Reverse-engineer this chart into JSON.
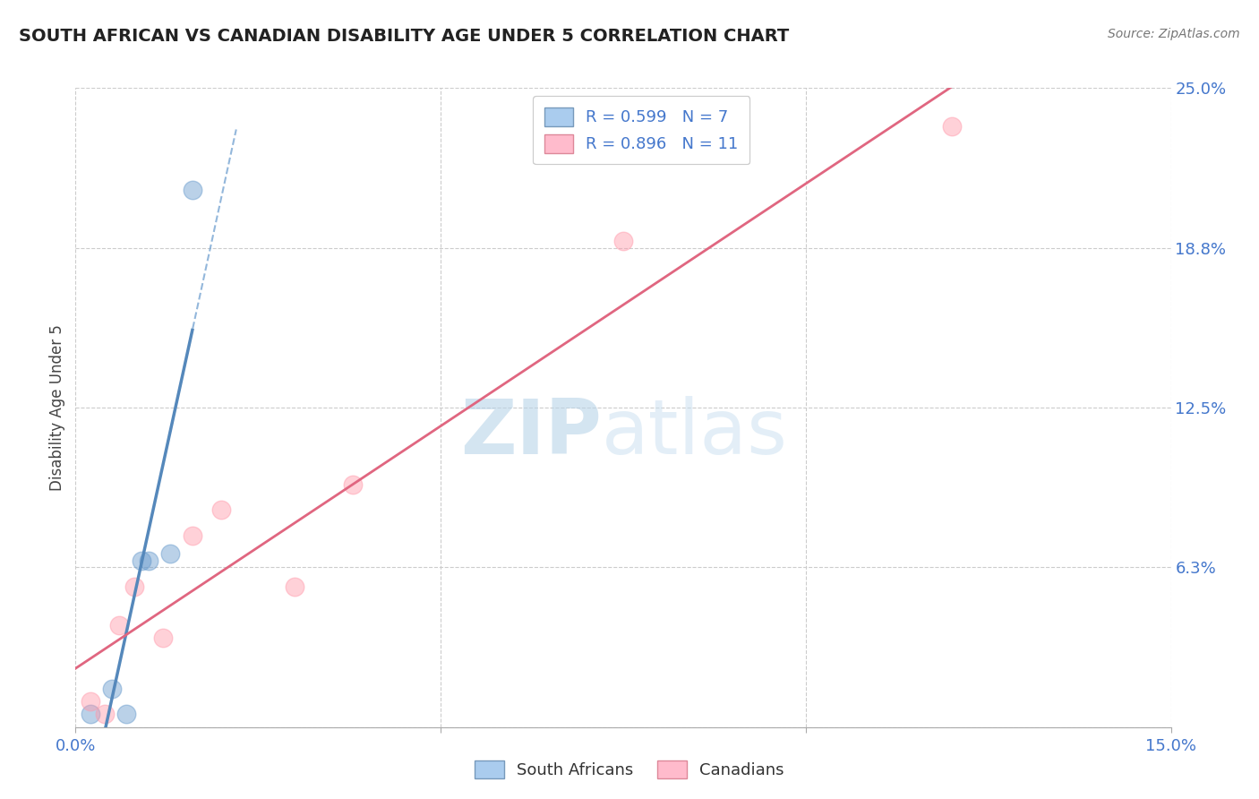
{
  "title": "SOUTH AFRICAN VS CANADIAN DISABILITY AGE UNDER 5 CORRELATION CHART",
  "source": "Source: ZipAtlas.com",
  "ylabel_label": "Disability Age Under 5",
  "xlim": [
    0.0,
    0.15
  ],
  "ylim": [
    0.0,
    0.25
  ],
  "xtick_values": [
    0.0,
    0.05,
    0.1,
    0.15
  ],
  "xtick_labels": [
    "0.0%",
    "",
    "",
    "15.0%"
  ],
  "ytick_values": [
    0.0,
    0.0625,
    0.125,
    0.1875,
    0.25
  ],
  "ytick_labels": [
    "",
    "6.3%",
    "12.5%",
    "18.8%",
    "25.0%"
  ],
  "grid_color": "#cccccc",
  "background_color": "#ffffff",
  "sa_color": "#6699cc",
  "ca_color": "#ff99aa",
  "sa_line_color": "#5588bb",
  "ca_line_color": "#e06680",
  "sa_R": 0.599,
  "sa_N": 7,
  "ca_R": 0.896,
  "ca_N": 11,
  "south_african_x": [
    0.002,
    0.005,
    0.007,
    0.009,
    0.01,
    0.013,
    0.016
  ],
  "south_african_y": [
    0.005,
    0.015,
    0.005,
    0.065,
    0.065,
    0.068,
    0.21
  ],
  "canadian_x": [
    0.002,
    0.004,
    0.006,
    0.008,
    0.012,
    0.016,
    0.02,
    0.03,
    0.038,
    0.075,
    0.12
  ],
  "canadian_y": [
    0.01,
    0.005,
    0.04,
    0.055,
    0.035,
    0.075,
    0.085,
    0.055,
    0.095,
    0.19,
    0.235
  ],
  "watermark_zip": "ZIP",
  "watermark_atlas": "atlas",
  "legend_sa_label": "R = 0.599   N = 7",
  "legend_ca_label": "R = 0.896   N = 11"
}
